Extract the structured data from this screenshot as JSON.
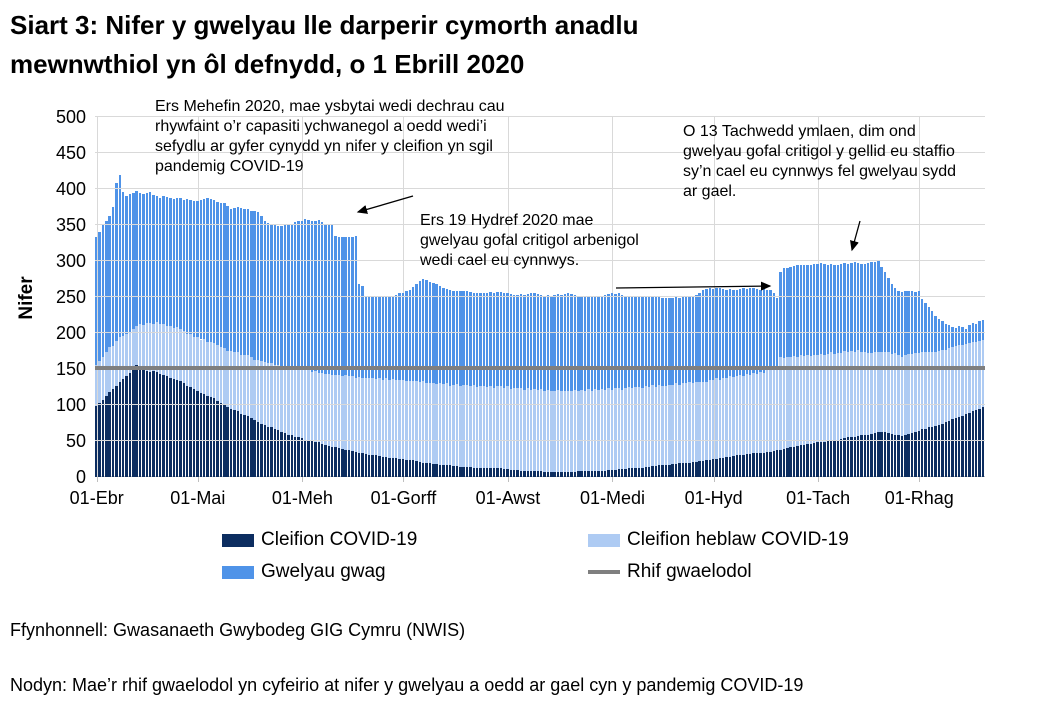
{
  "title": {
    "line1": "Siart 3: Nifer y gwelyau lle darperir cymorth anadlu",
    "line2": "mewnwthiol yn ôl defnydd, o 1 Ebrill 2020"
  },
  "chart_data": {
    "type": "bar",
    "stacked": true,
    "start_date": "2020-04-01",
    "ylabel": "Nifer",
    "ylim": [
      0,
      500
    ],
    "yticks": [
      0,
      50,
      100,
      150,
      200,
      250,
      300,
      350,
      400,
      450,
      500
    ],
    "grid": "horizontal and monthly vertical, light gray",
    "x_ticks": [
      {
        "label": "01-Ebr",
        "day": 0
      },
      {
        "label": "01-Mai",
        "day": 30
      },
      {
        "label": "01-Meh",
        "day": 61
      },
      {
        "label": "01-Gorff",
        "day": 91
      },
      {
        "label": "01-Awst",
        "day": 122
      },
      {
        "label": "01-Medi",
        "day": 153
      },
      {
        "label": "01-Hyd",
        "day": 183
      },
      {
        "label": "01-Tach",
        "day": 214
      },
      {
        "label": "01-Rhag",
        "day": 244
      }
    ],
    "baseline": {
      "label": "Rhif gwaelodol",
      "value": 152,
      "color": "#7f7f7f"
    },
    "series": [
      {
        "name": "Cleifion COVID-19",
        "color": "#0c2d60",
        "values": [
          98,
          103,
          107,
          112,
          118,
          122,
          127,
          132,
          136,
          140,
          145,
          150,
          155,
          152,
          148,
          147,
          146,
          147,
          146,
          143,
          141,
          140,
          138,
          136,
          135,
          133,
          130,
          127,
          125,
          122,
          120,
          117,
          115,
          113,
          111,
          110,
          106,
          103,
          100,
          97,
          95,
          93,
          91,
          88,
          86,
          85,
          82,
          79,
          77,
          74,
          72,
          70,
          69,
          67,
          65,
          62,
          61,
          59,
          58,
          56,
          55,
          54,
          52,
          51,
          50,
          49,
          48,
          46,
          45,
          43,
          42,
          41,
          40,
          39,
          38,
          38,
          36,
          35,
          34,
          33,
          32,
          31,
          31,
          30,
          29,
          28,
          28,
          27,
          26,
          26,
          25,
          25,
          24,
          23,
          23,
          22,
          21,
          20,
          20,
          19,
          18,
          18,
          17,
          17,
          16,
          16,
          15,
          15,
          14,
          14,
          14,
          14,
          13,
          13,
          13,
          12,
          12,
          12,
          12,
          12,
          12,
          11,
          11,
          10,
          10,
          10,
          9,
          9,
          9,
          8,
          8,
          8,
          8,
          7,
          7,
          7,
          7,
          7,
          7,
          7,
          7,
          7,
          7,
          8,
          8,
          8,
          8,
          8,
          9,
          9,
          9,
          9,
          10,
          10,
          10,
          11,
          11,
          11,
          12,
          12,
          12,
          13,
          13,
          14,
          14,
          15,
          15,
          16,
          16,
          17,
          17,
          18,
          18,
          19,
          19,
          20,
          20,
          21,
          21,
          22,
          22,
          23,
          24,
          25,
          25,
          26,
          27,
          28,
          28,
          29,
          30,
          31,
          31,
          32,
          32,
          33,
          33,
          34,
          34,
          35,
          35,
          36,
          37,
          38,
          39,
          40,
          41,
          42,
          43,
          44,
          45,
          46,
          46,
          47,
          48,
          49,
          49,
          50,
          51,
          51,
          52,
          53,
          54,
          55,
          55,
          56,
          57,
          58,
          58,
          59,
          60,
          61,
          62,
          62,
          63,
          61,
          60,
          59,
          58,
          57,
          58,
          60,
          61,
          63,
          64,
          66,
          67,
          69,
          70,
          71,
          72,
          74,
          76,
          78,
          80,
          82,
          84,
          85,
          87,
          89,
          91,
          93,
          95,
          97
        ]
      },
      {
        "name": "Cleifion heblaw COVID-19",
        "color": "#aecbf3",
        "values": [
          57,
          58,
          60,
          61,
          62,
          60,
          62,
          63,
          60,
          58,
          57,
          56,
          55,
          60,
          63,
          67,
          68,
          66,
          69,
          70,
          71,
          70,
          72,
          71,
          73,
          72,
          73,
          72,
          74,
          73,
          75,
          74,
          76,
          75,
          77,
          76,
          78,
          77,
          79,
          78,
          80,
          80,
          82,
          81,
          83,
          84,
          85,
          84,
          86,
          87,
          88,
          88,
          90,
          89,
          91,
          92,
          93,
          92,
          94,
          94,
          95,
          95,
          96,
          97,
          96,
          98,
          97,
          99,
          98,
          100,
          100,
          100,
          102,
          101,
          103,
          102,
          104,
          103,
          105,
          104,
          106,
          106,
          107,
          106,
          108,
          107,
          109,
          108,
          110,
          109,
          110,
          110,
          109,
          111,
          110,
          112,
          111,
          113,
          110,
          112,
          112,
          111,
          113,
          112,
          114,
          111,
          113,
          114,
          112,
          114,
          114,
          113,
          115,
          112,
          114,
          115,
          113,
          114,
          112,
          115,
          114,
          113,
          115,
          112,
          114,
          113,
          115,
          112,
          114,
          113,
          114,
          113,
          114,
          112,
          114,
          113,
          112,
          114,
          113,
          112,
          113,
          112,
          114,
          111,
          113,
          112,
          114,
          111,
          113,
          112,
          113,
          112,
          113,
          111,
          113,
          112,
          110,
          112,
          113,
          111,
          113,
          112,
          110,
          112,
          111,
          113,
          110,
          112,
          111,
          110,
          111,
          110,
          112,
          109,
          111,
          110,
          112,
          109,
          111,
          110,
          110,
          109,
          111,
          110,
          112,
          109,
          111,
          110,
          112,
          110,
          110,
          111,
          109,
          111,
          110,
          112,
          110,
          112,
          111,
          113,
          113,
          112,
          111,
          128,
          126,
          127,
          125,
          126,
          124,
          125,
          123,
          124,
          122,
          123,
          121,
          122,
          120,
          121,
          122,
          120,
          120,
          119,
          121,
          118,
          120,
          117,
          119,
          116,
          115,
          113,
          112,
          113,
          111,
          112,
          110,
          112,
          111,
          113,
          112,
          110,
          112,
          111,
          110,
          109,
          108,
          107,
          106,
          105,
          104,
          103,
          103,
          102,
          101,
          101,
          100,
          100,
          99,
          98,
          98,
          97,
          97,
          95,
          94,
          93
        ]
      },
      {
        "name": "Gwelyau gwag",
        "color": "#4f93e8",
        "values": [
          178,
          179,
          185,
          183,
          182,
          193,
          219,
          225,
          200,
          192,
          191,
          188,
          187,
          183,
          182,
          180,
          182,
          179,
          175,
          175,
          179,
          179,
          178,
          179,
          180,
          182,
          182,
          187,
          186,
          189,
          188,
          194,
          195,
          199,
          198,
          199,
          198,
          201,
          201,
          201,
          197,
          201,
          202,
          204,
          203,
          203,
          203,
          206,
          205,
          201,
          195,
          195,
          193,
          194,
          193,
          194,
          196,
          200,
          200,
          204,
          205,
          207,
          210,
          209,
          209,
          209,
          212,
          209,
          209,
          208,
          208,
          194,
          192,
          193,
          193,
          193,
          194,
          197,
          129,
          128,
          114,
          114,
          114,
          114,
          114,
          115,
          114,
          117,
          115,
          118,
          120,
          121,
          125,
          126,
          131,
          134,
          140,
          142,
          143,
          140,
          140,
          139,
          135,
          133,
          131,
          133,
          131,
          129,
          133,
          130,
          130,
          130,
          128,
          130,
          129,
          128,
          131,
          131,
          132,
          130,
          131,
          132,
          129,
          132,
          129,
          130,
          130,
          132,
          131,
          134,
          133,
          133,
          131,
          133,
          132,
          132,
          134,
          133,
          133,
          135,
          135,
          135,
          132,
          133,
          130,
          130,
          129,
          133,
          129,
          131,
          130,
          132,
          131,
          134,
          131,
          132,
          132,
          129,
          126,
          127,
          125,
          126,
          129,
          125,
          127,
          124,
          126,
          122,
          122,
          121,
          120,
          121,
          120,
          121,
          120,
          120,
          119,
          122,
          121,
          123,
          128,
          129,
          127,
          126,
          125,
          127,
          123,
          122,
          121,
          121,
          120,
          119,
          122,
          118,
          120,
          117,
          118,
          114,
          116,
          112,
          112,
          107,
          100,
          119,
          125,
          124,
          126,
          125,
          127,
          125,
          127,
          124,
          127,
          126,
          127,
          126,
          127,
          124,
          123,
          124,
          123,
          124,
          122,
          123,
          122,
          125,
          121,
          122,
          123,
          125,
          126,
          125,
          127,
          118,
          112,
          103,
          97,
          90,
          88,
          90,
          88,
          88,
          87,
          85,
          86,
          74,
          69,
          62,
          56,
          50,
          45,
          40,
          36,
          32,
          28,
          25,
          27,
          25,
          21,
          25,
          26,
          24,
          27,
          28
        ]
      }
    ],
    "annotations": [
      {
        "lines": [
          "Ers Mehefin 2020, mae ysbytai wedi dechrau cau",
          "rhywfaint o’r capasiti ychwanegol a oedd wedi’i",
          "sefydlu ar gyfer cynydd yn nifer y cleifion yn sgil",
          "pandemig COVID-19"
        ]
      },
      {
        "lines": [
          "Ers 19 Hydref 2020 mae",
          "gwelyau gofal critigol arbenigol",
          "wedi cael eu cynnwys."
        ]
      },
      {
        "lines": [
          "O 13 Tachwedd ymlaen, dim ond",
          "gwelyau gofal critigol y gellid eu staffio",
          "sy’n cael eu cynnwys fel gwelyau sydd",
          "ar gael."
        ]
      }
    ],
    "legend_position": "bottom, two columns"
  },
  "legend": {
    "items": [
      {
        "label": "Cleifion COVID-19",
        "swatch": "#0c2d60",
        "shape": "box"
      },
      {
        "label": "Cleifion heblaw COVID-19",
        "swatch": "#aecbf3",
        "shape": "box"
      },
      {
        "label": "Gwelyau gwag",
        "swatch": "#4f93e8",
        "shape": "box"
      },
      {
        "label": "Rhif gwaelodol",
        "swatch": "#7f7f7f",
        "shape": "line"
      }
    ]
  },
  "footer": {
    "source": "Ffynhonnell: Gwasanaeth Gwybodeg GIG Cymru (NWIS)",
    "note": "Nodyn: Mae’r rhif gwaelodol yn cyfeirio at nifer y gwelyau a oedd ar gael cyn y pandemig COVID-19"
  },
  "colors": {
    "gridline": "#d9d9d9",
    "axis": "#bfbfbf",
    "text": "#000000"
  }
}
